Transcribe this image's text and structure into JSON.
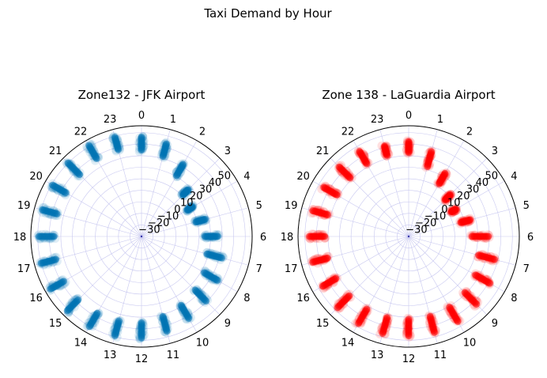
{
  "figure": {
    "suptitle": "Taxi Demand by Hour"
  },
  "chart_data": [
    {
      "type": "scatter",
      "projection": "polar",
      "title": "Zone132 - JFK Airport",
      "theta_tick_labels": [
        "0",
        "1",
        "2",
        "3",
        "4",
        "5",
        "6",
        "7",
        "8",
        "9",
        "10",
        "11",
        "12",
        "13",
        "14",
        "15",
        "16",
        "17",
        "18",
        "19",
        "20",
        "21",
        "22",
        "23"
      ],
      "r_tick_labels": [
        "−30",
        "−20",
        "−10",
        "0",
        "10",
        "20",
        "30",
        "40",
        "50"
      ],
      "r_ticks": [
        -30,
        -20,
        -10,
        0,
        10,
        20,
        30,
        40,
        50
      ],
      "rlim": [
        -40,
        56
      ],
      "grid": true,
      "color": "#0072b2",
      "alpha": 0.12,
      "r_ranges_by_hour": [
        [
          34,
          47
        ],
        [
          31,
          44
        ],
        [
          20,
          33
        ],
        [
          10,
          18
        ],
        [
          5,
          12
        ],
        [
          8,
          18
        ],
        [
          14,
          27
        ],
        [
          18,
          33
        ],
        [
          22,
          37
        ],
        [
          25,
          40
        ],
        [
          28,
          43
        ],
        [
          31,
          46
        ],
        [
          34,
          49
        ],
        [
          35,
          50
        ],
        [
          36,
          51
        ],
        [
          37,
          52
        ],
        [
          37,
          52
        ],
        [
          36,
          51
        ],
        [
          35,
          50
        ],
        [
          35,
          50
        ],
        [
          35,
          50
        ],
        [
          35,
          51
        ],
        [
          37,
          52
        ],
        [
          37,
          50
        ]
      ]
    },
    {
      "type": "scatter",
      "projection": "polar",
      "title": "Zone 138 - LaGuardia Airport",
      "theta_tick_labels": [
        "0",
        "1",
        "2",
        "3",
        "4",
        "5",
        "6",
        "7",
        "8",
        "9",
        "10",
        "11",
        "12",
        "13",
        "14",
        "15",
        "16",
        "17",
        "18",
        "19",
        "20",
        "21",
        "22",
        "23"
      ],
      "r_tick_labels": [
        "−30",
        "−20",
        "−10",
        "0",
        "10",
        "20",
        "30",
        "40",
        "50"
      ],
      "r_ticks": [
        -30,
        -20,
        -10,
        0,
        10,
        20,
        30,
        40,
        50
      ],
      "rlim": [
        -40,
        56
      ],
      "grid": true,
      "color": "#ff0000",
      "alpha": 0.12,
      "r_ranges_by_hour": [
        [
          32,
          43
        ],
        [
          22,
          37
        ],
        [
          12,
          24
        ],
        [
          4,
          12
        ],
        [
          2,
          8
        ],
        [
          6,
          16
        ],
        [
          14,
          30
        ],
        [
          22,
          38
        ],
        [
          26,
          42
        ],
        [
          28,
          44
        ],
        [
          30,
          46
        ],
        [
          31,
          47
        ],
        [
          31,
          47
        ],
        [
          32,
          48
        ],
        [
          32,
          48
        ],
        [
          32,
          48
        ],
        [
          32,
          47
        ],
        [
          32,
          47
        ],
        [
          32,
          47
        ],
        [
          32,
          47
        ],
        [
          31,
          46
        ],
        [
          31,
          46
        ],
        [
          32,
          46
        ],
        [
          32,
          42
        ]
      ]
    }
  ]
}
